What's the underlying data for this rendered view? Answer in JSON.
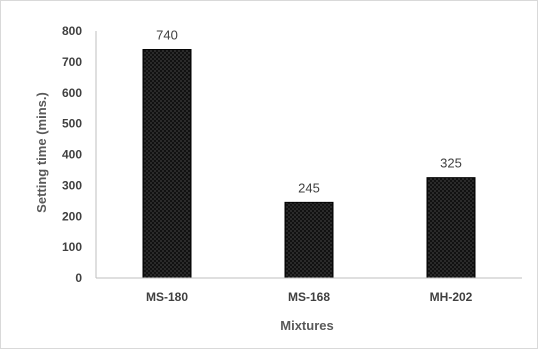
{
  "chart_data": {
    "type": "bar",
    "categories": [
      "MS-180",
      "MS-168",
      "MH-202"
    ],
    "values": [
      740,
      245,
      325
    ],
    "data_labels": [
      "740",
      "245",
      "325"
    ],
    "xlabel": "Mixtures",
    "ylabel": "Setting time (mins.)",
    "ylim": [
      0,
      800
    ],
    "yticks": [
      0,
      100,
      200,
      300,
      400,
      500,
      600,
      700,
      800
    ],
    "grid": false,
    "legend": "none",
    "bar_fill": "#111111",
    "bar_pattern": "dotted"
  }
}
